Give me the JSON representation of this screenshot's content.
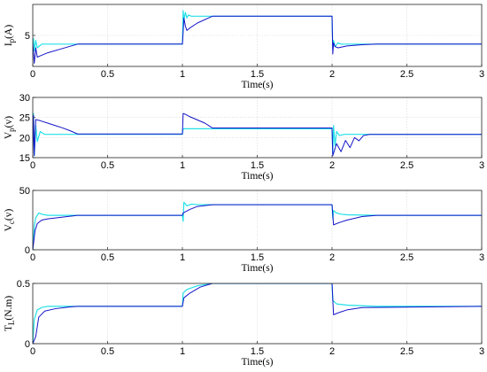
{
  "chart_data": [
    {
      "type": "line",
      "ylabel": "I_p(A)",
      "xlabel": "Time(s)",
      "xlim": [
        0,
        3
      ],
      "ylim": [
        0,
        10
      ],
      "x_ticks": [
        "0",
        "0.5",
        "1",
        "1.5",
        "2",
        "2.5",
        "3"
      ],
      "y_ticks": [
        {
          "value": 5,
          "label": "5"
        }
      ],
      "grid": true,
      "series": [
        {
          "color": "#22e0e8",
          "x": [
            0,
            0.005,
            0.01,
            0.02,
            0.03,
            0.06,
            0.3,
            1.0,
            1.005,
            1.01,
            1.02,
            1.03,
            1.04,
            1.06,
            1.2,
            2.0,
            2.005,
            2.01,
            2.02,
            2.04,
            2.06,
            2.3,
            3.0
          ],
          "y": [
            3.5,
            4.5,
            2.5,
            4.2,
            3.0,
            3.6,
            3.6,
            3.6,
            9.0,
            7.5,
            8.7,
            7.8,
            8.3,
            8.1,
            8.1,
            8.1,
            2.8,
            4.2,
            3.2,
            3.8,
            3.6,
            3.6,
            3.6
          ]
        },
        {
          "color": "#1414c8",
          "x": [
            0,
            0.01,
            0.02,
            0.03,
            0.05,
            0.1,
            0.2,
            0.3,
            1.0,
            1.005,
            1.01,
            1.02,
            1.03,
            1.05,
            1.1,
            1.2,
            2.0,
            2.005,
            2.01,
            2.02,
            2.04,
            2.1,
            2.2,
            2.3,
            3.0
          ],
          "y": [
            3.8,
            0.5,
            3.0,
            1.5,
            1.7,
            2.2,
            2.9,
            3.6,
            3.6,
            5.5,
            7.8,
            6.5,
            5.8,
            6.2,
            7.0,
            8.1,
            8.1,
            2.0,
            3.8,
            3.2,
            3.0,
            3.3,
            3.5,
            3.6,
            3.6
          ]
        }
      ]
    },
    {
      "type": "line",
      "ylabel": "V_p(v)",
      "xlabel": "Time(s)",
      "xlim": [
        0,
        3
      ],
      "ylim": [
        15,
        30
      ],
      "x_ticks": [
        "0",
        "0.5",
        "1",
        "1.5",
        "2",
        "2.5",
        "3"
      ],
      "y_ticks": [
        {
          "value": 15,
          "label": "15"
        },
        {
          "value": 20,
          "label": "20"
        },
        {
          "value": 25,
          "label": "25"
        },
        {
          "value": 30,
          "label": "30"
        }
      ],
      "grid": true,
      "series": [
        {
          "color": "#22e0e8",
          "x": [
            0,
            0.005,
            0.01,
            0.02,
            0.03,
            0.05,
            0.08,
            0.3,
            1.0,
            1.005,
            1.02,
            1.2,
            2.0,
            2.005,
            2.01,
            2.02,
            2.03,
            2.05,
            2.08,
            2.3,
            3.0
          ],
          "y": [
            20.0,
            26.0,
            15.5,
            23.0,
            19.0,
            21.5,
            20.8,
            20.8,
            20.8,
            22.2,
            22.2,
            22.2,
            22.2,
            16.0,
            23.0,
            18.0,
            21.5,
            20.5,
            20.8,
            20.8,
            20.8
          ]
        },
        {
          "color": "#1414c8",
          "x": [
            0,
            0.005,
            0.01,
            0.02,
            0.05,
            0.1,
            0.15,
            0.2,
            0.25,
            0.3,
            1.0,
            1.005,
            1.02,
            1.05,
            1.1,
            1.15,
            1.2,
            2.0,
            2.005,
            2.03,
            2.06,
            2.09,
            2.12,
            2.15,
            2.18,
            2.21,
            2.25,
            3.0
          ],
          "y": [
            16.0,
            25.5,
            15.5,
            24.5,
            24.2,
            23.6,
            23.0,
            22.4,
            21.7,
            20.9,
            20.9,
            26.0,
            25.8,
            25.2,
            24.4,
            23.6,
            22.4,
            22.4,
            15.5,
            18.5,
            16.5,
            19.3,
            17.5,
            20.0,
            19.2,
            20.5,
            20.8,
            20.8
          ]
        }
      ]
    },
    {
      "type": "line",
      "ylabel": "V_c(v)",
      "xlabel": "Time(s)",
      "xlim": [
        0,
        3
      ],
      "ylim": [
        0,
        50
      ],
      "x_ticks": [
        "0",
        "0.5",
        "1",
        "1.5",
        "2",
        "2.5",
        "3"
      ],
      "y_ticks": [
        {
          "value": 0,
          "label": "0"
        },
        {
          "value": 50,
          "label": "50"
        }
      ],
      "grid": true,
      "series": [
        {
          "color": "#22e0e8",
          "x": [
            0,
            0.01,
            0.02,
            0.04,
            0.06,
            0.1,
            0.3,
            1.0,
            1.005,
            1.01,
            1.03,
            1.06,
            1.1,
            1.2,
            2.0,
            2.005,
            2.01,
            2.03,
            2.06,
            2.1,
            2.3,
            3.0
          ],
          "y": [
            0,
            20,
            27,
            31,
            30,
            29,
            29,
            29,
            24,
            40,
            37,
            38.5,
            38,
            38,
            38,
            26,
            33,
            31,
            30,
            29.5,
            29,
            29
          ]
        },
        {
          "color": "#1414c8",
          "x": [
            0,
            0.005,
            0.015,
            0.03,
            0.06,
            0.1,
            0.2,
            0.3,
            1.0,
            1.005,
            1.05,
            1.1,
            1.2,
            2.0,
            2.01,
            2.05,
            2.1,
            2.15,
            2.2,
            2.3,
            3.0
          ],
          "y": [
            0,
            5,
            16,
            22,
            25,
            26,
            27.5,
            29,
            29,
            31,
            34,
            36.5,
            38,
            38,
            21,
            23,
            25,
            26.5,
            28,
            29,
            29
          ]
        }
      ]
    },
    {
      "type": "line",
      "ylabel": "T_L(N.m)",
      "xlabel": "Time(s)",
      "xlim": [
        0,
        3
      ],
      "ylim": [
        0,
        0.5
      ],
      "x_ticks": [
        "0",
        "0.5",
        "1",
        "1.5",
        "2",
        "2.5",
        "3"
      ],
      "y_ticks": [
        {
          "value": 0,
          "label": "0"
        },
        {
          "value": 0.5,
          "label": "0.5"
        }
      ],
      "grid": true,
      "series": [
        {
          "color": "#22e0e8",
          "x": [
            0,
            0.01,
            0.03,
            0.06,
            0.1,
            0.3,
            1.0,
            1.005,
            1.03,
            1.1,
            1.2,
            2.0,
            2.005,
            2.03,
            2.1,
            2.3,
            3.0
          ],
          "y": [
            0,
            0.2,
            0.28,
            0.3,
            0.31,
            0.31,
            0.31,
            0.42,
            0.45,
            0.48,
            0.5,
            0.5,
            0.36,
            0.33,
            0.32,
            0.31,
            0.31
          ]
        },
        {
          "color": "#1414c8",
          "x": [
            0,
            0.02,
            0.04,
            0.08,
            0.15,
            0.25,
            0.3,
            1.0,
            1.01,
            1.05,
            1.12,
            1.2,
            2.0,
            2.01,
            2.05,
            2.1,
            2.2,
            3.0
          ],
          "y": [
            0,
            0.06,
            0.22,
            0.27,
            0.29,
            0.305,
            0.31,
            0.31,
            0.38,
            0.42,
            0.47,
            0.5,
            0.5,
            0.24,
            0.26,
            0.28,
            0.3,
            0.31
          ]
        }
      ]
    }
  ]
}
